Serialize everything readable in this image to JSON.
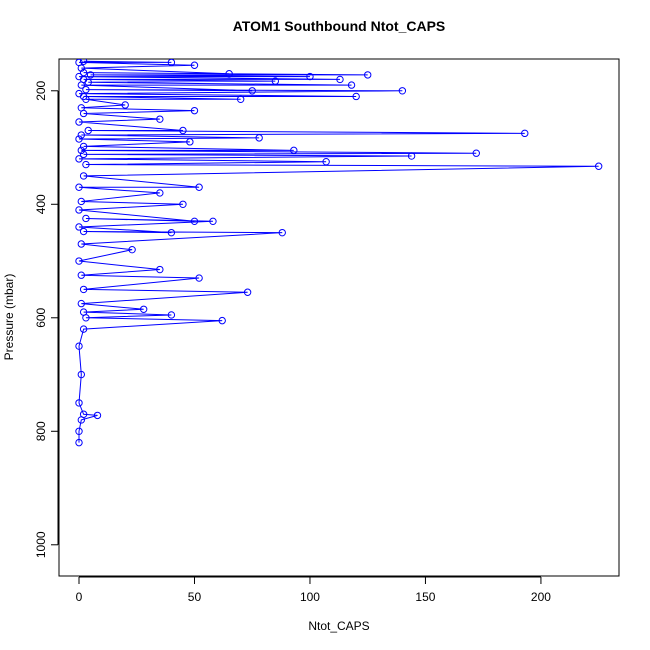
{
  "chart_data": {
    "type": "line",
    "title": "ATOM1 Southbound Ntot_CAPS",
    "x_label": "Ntot_CAPS",
    "y_label": "Pressure (mbar)",
    "color": "#0000ff",
    "markers": true,
    "y_inverted": true,
    "x": [
      0,
      0,
      1,
      8,
      2,
      0,
      1,
      0,
      2,
      62,
      3,
      40,
      2,
      28,
      1,
      73,
      2,
      52,
      1,
      35,
      0,
      23,
      1,
      88,
      2,
      40,
      0,
      58,
      3,
      50,
      0,
      45,
      1,
      35,
      0,
      52,
      2,
      225,
      3,
      107,
      0,
      144,
      2,
      172,
      1,
      93,
      2,
      48,
      0,
      78,
      1,
      193,
      4,
      45,
      0,
      35,
      2,
      50,
      1,
      20,
      3,
      70,
      2,
      120,
      0,
      140,
      3,
      75,
      1,
      118,
      4,
      85,
      2,
      113,
      0,
      100,
      5,
      125,
      2,
      65,
      1,
      50,
      0,
      40,
      2
    ],
    "values": [
      820,
      800,
      780,
      772,
      770,
      750,
      700,
      650,
      620,
      605,
      600,
      595,
      590,
      585,
      575,
      555,
      550,
      530,
      525,
      515,
      500,
      480,
      470,
      450,
      448,
      450,
      440,
      430,
      425,
      430,
      410,
      400,
      395,
      380,
      370,
      370,
      350,
      333,
      330,
      325,
      320,
      315,
      312,
      310,
      305,
      305,
      298,
      290,
      285,
      283,
      278,
      275,
      270,
      270,
      255,
      250,
      240,
      235,
      230,
      225,
      215,
      215,
      210,
      210,
      205,
      200,
      198,
      200,
      190,
      190,
      185,
      183,
      180,
      180,
      175,
      175,
      172,
      172,
      168,
      170,
      160,
      155,
      150,
      150,
      148
    ],
    "xlim": [
      -8.66,
      233.8
    ],
    "ylim": [
      144,
      1055
    ],
    "xticks": [
      0,
      50,
      100,
      150,
      200
    ],
    "yticks": [
      200,
      400,
      600,
      800,
      1000
    ]
  }
}
